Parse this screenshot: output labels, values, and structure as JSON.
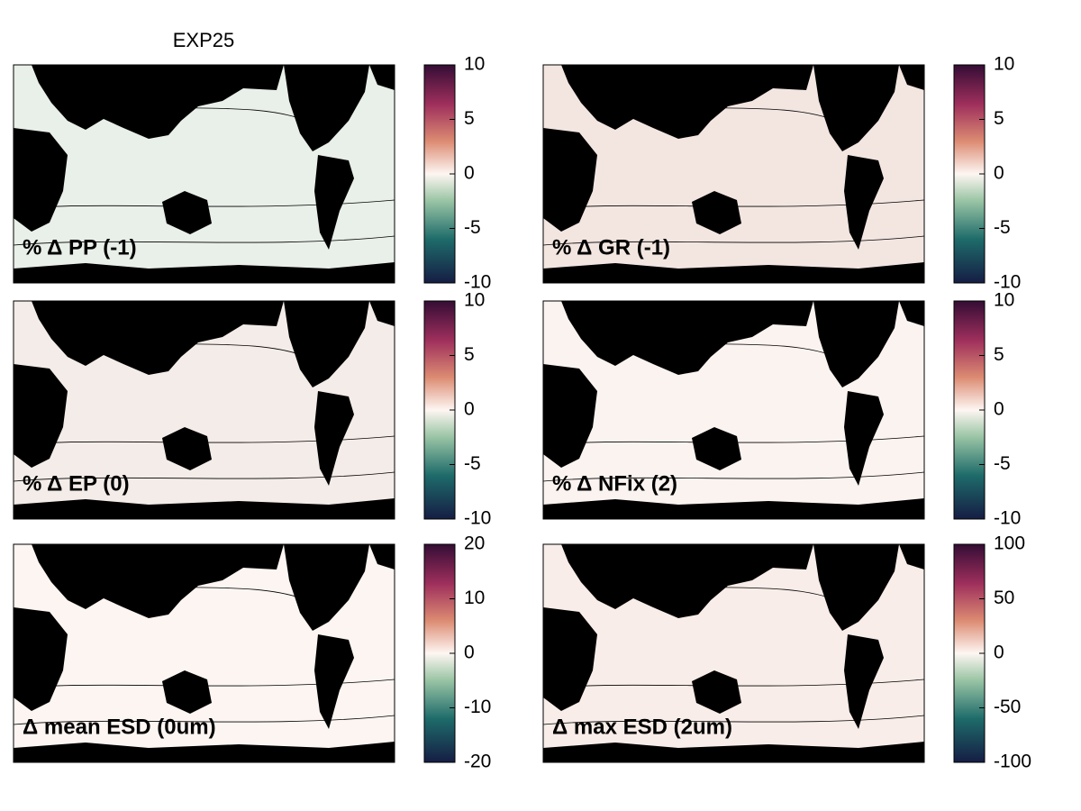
{
  "title": "EXP25",
  "panels": [
    {
      "label": "% Δ PP (-1)",
      "clim": [
        -10,
        10
      ],
      "cticks": [
        -10,
        -5,
        0,
        5,
        10
      ]
    },
    {
      "label": "% Δ GR (-1)",
      "clim": [
        -10,
        10
      ],
      "cticks": [
        -10,
        -5,
        0,
        5,
        10
      ]
    },
    {
      "label": "% Δ EP (0)",
      "clim": [
        -10,
        10
      ],
      "cticks": [
        -10,
        -5,
        0,
        5,
        10
      ]
    },
    {
      "label": "% Δ NFix (2)",
      "clim": [
        -10,
        10
      ],
      "cticks": [
        -10,
        -5,
        0,
        5,
        10
      ]
    },
    {
      "label": "Δ mean ESD (0um)",
      "clim": [
        -20,
        20
      ],
      "cticks": [
        -20,
        -10,
        0,
        10,
        20
      ]
    },
    {
      "label": "Δ max ESD (2um)",
      "clim": [
        -100,
        100
      ],
      "cticks": [
        -100,
        -50,
        0,
        50,
        100
      ]
    }
  ]
}
